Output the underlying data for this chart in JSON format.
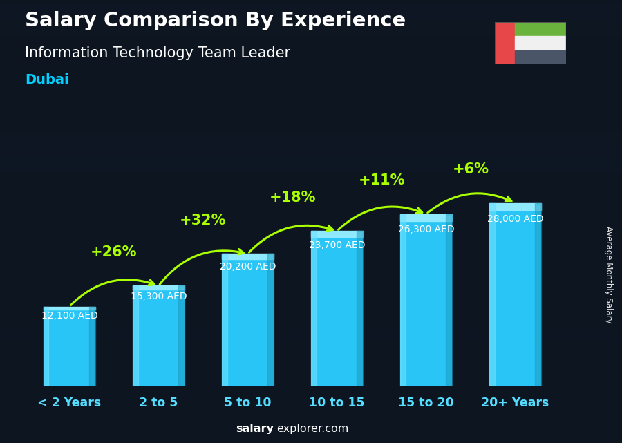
{
  "title_line1": "Salary Comparison By Experience",
  "title_line2": "Information Technology Team Leader",
  "title_line3": "Dubai",
  "categories": [
    "< 2 Years",
    "2 to 5",
    "5 to 10",
    "10 to 15",
    "15 to 20",
    "20+ Years"
  ],
  "values": [
    12100,
    15300,
    20200,
    23700,
    26300,
    28000
  ],
  "labels": [
    "12,100 AED",
    "15,300 AED",
    "20,200 AED",
    "23,700 AED",
    "26,300 AED",
    "28,000 AED"
  ],
  "pct_changes": [
    null,
    "+26%",
    "+32%",
    "+18%",
    "+11%",
    "+6%"
  ],
  "bar_color_main": "#29c5f6",
  "bar_color_light": "#6ee0ff",
  "bar_color_top": "#90eaff",
  "pct_color": "#aaff00",
  "label_color": "#ffffff",
  "bg_color": "#1a2035",
  "title1_color": "#ffffff",
  "title2_color": "#ffffff",
  "title3_color": "#00cfff",
  "cat_color": "#55ddff",
  "ylabel_text": "Average Monthly Salary",
  "footer_bold": "salary",
  "footer_normal": "explorer.com",
  "ylim_max": 34000,
  "flag_red": "#e8474a",
  "flag_green": "#6ab43e",
  "flag_white": "#f0f0f0",
  "flag_black": "#4a5568"
}
